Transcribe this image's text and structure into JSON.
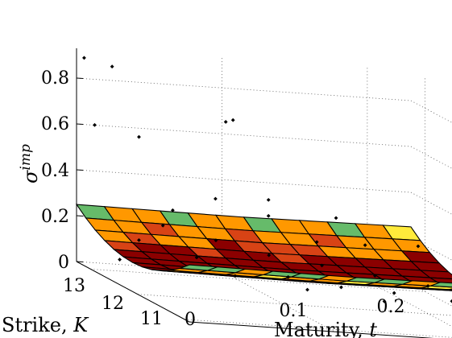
{
  "chart_data": {
    "type": "scatter",
    "surface": true,
    "x_axis": {
      "label_text": "Maturity, ",
      "label_var": "t",
      "ticks": [
        "0",
        "0.1",
        "0.2"
      ],
      "range": [
        0,
        0.23
      ]
    },
    "y_axis": {
      "label_text": "Strike, ",
      "label_var": "K",
      "ticks": [
        "11",
        "12",
        "13"
      ],
      "range": [
        10.9,
        13.3
      ]
    },
    "z_axis": {
      "label_sym": "σ",
      "label_sup": "imp",
      "ticks": [
        "0",
        "0.2",
        "0.4",
        "0.6",
        "0.8"
      ],
      "range": [
        0,
        0.93
      ]
    },
    "grid": true,
    "colors": {
      "edge": "#000000",
      "points": "#000000",
      "grid": "#555555"
    },
    "scatter_points": [
      [
        0.002,
        13.2,
        0.9
      ],
      [
        0.018,
        13.1,
        0.88
      ],
      [
        0.03,
        12.9,
        0.6
      ],
      [
        0.006,
        13.1,
        0.62
      ],
      [
        0.08,
        12.6,
        0.72
      ],
      [
        0.085,
        12.6,
        0.73
      ],
      [
        0.06,
        12.2,
        0.42
      ],
      [
        0.09,
        12.0,
        0.38
      ],
      [
        0.12,
        11.9,
        0.29
      ],
      [
        0.15,
        11.8,
        0.3
      ],
      [
        0.18,
        11.6,
        0.33
      ],
      [
        0.2,
        11.4,
        0.28
      ],
      [
        0.21,
        11.3,
        0.26
      ],
      [
        0.22,
        11.2,
        0.17
      ],
      [
        0.05,
        12.8,
        0.3
      ],
      [
        0.04,
        12.7,
        0.24
      ],
      [
        0.07,
        12.5,
        0.21
      ],
      [
        0.1,
        12.3,
        0.18
      ],
      [
        0.13,
        12.1,
        0.17
      ],
      [
        0.16,
        11.9,
        0.16
      ],
      [
        0.19,
        11.7,
        0.15
      ],
      [
        0.03,
        12.9,
        0.15
      ],
      [
        0.06,
        12.6,
        0.12
      ],
      [
        0.11,
        12.2,
        0.1
      ],
      [
        0.14,
        12.0,
        0.09
      ],
      [
        0.17,
        11.8,
        0.1
      ],
      [
        0.2,
        11.5,
        0.11
      ],
      [
        0.02,
        13.0,
        0.05
      ],
      [
        0.08,
        12.4,
        0.07
      ],
      [
        0.12,
        12.1,
        0.06
      ],
      [
        0.16,
        11.7,
        0.07
      ],
      [
        0.09,
        12.0,
        0.45
      ],
      [
        0.13,
        11.8,
        0.41
      ]
    ]
  }
}
